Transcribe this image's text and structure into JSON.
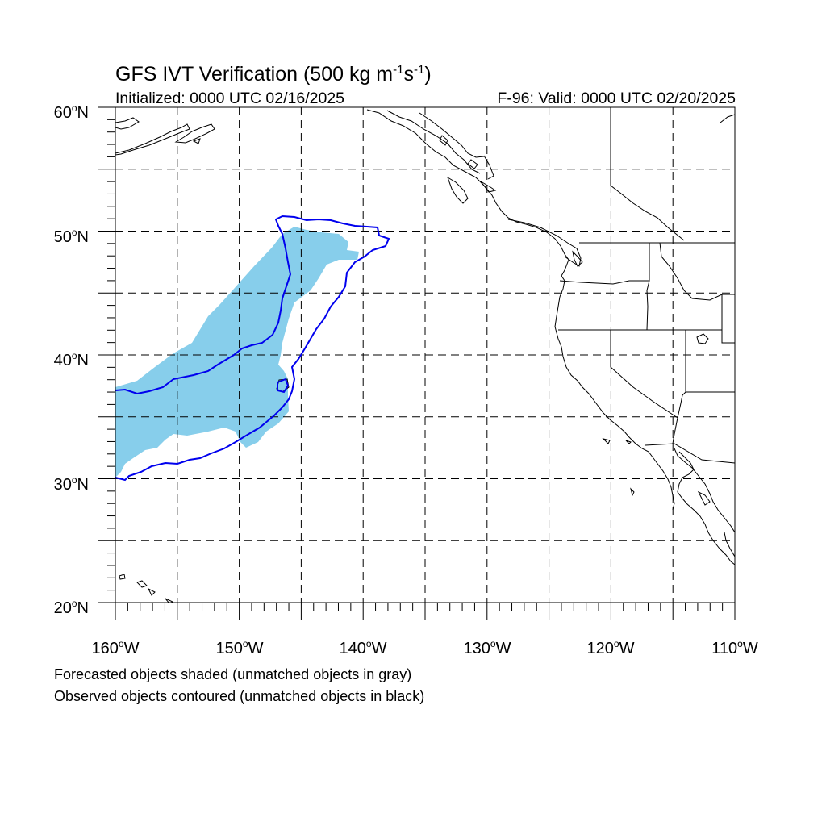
{
  "title": {
    "prefix": "GFS IVT Verification (500 kg m",
    "exp1": "-1",
    "mid": "s",
    "exp2": "-1",
    "suffix": ")"
  },
  "subtitle_left": "Initialized: 0000 UTC 02/16/2025",
  "subtitle_right": "F-96: Valid: 0000 UTC 02/20/2025",
  "lat_labels": [
    "60oN",
    "50oN",
    "40oN",
    "30oN",
    "20oN"
  ],
  "lon_labels": [
    "160oW",
    "150oW",
    "140oW",
    "130oW",
    "120oW",
    "110oW"
  ],
  "notes": [
    "Forecasted objects shaded (unmatched objects in gray)",
    "Observed objects contoured (unmatched objects in black)"
  ],
  "map": {
    "extent": {
      "lon_min": -160,
      "lon_max": -110,
      "lat_min": 20,
      "lat_max": 60
    },
    "grid_spacing_deg": 5,
    "colors": {
      "forecast_fill": "#87ceeb",
      "observed_contour": "#0000ee",
      "coast": "#000000"
    }
  }
}
